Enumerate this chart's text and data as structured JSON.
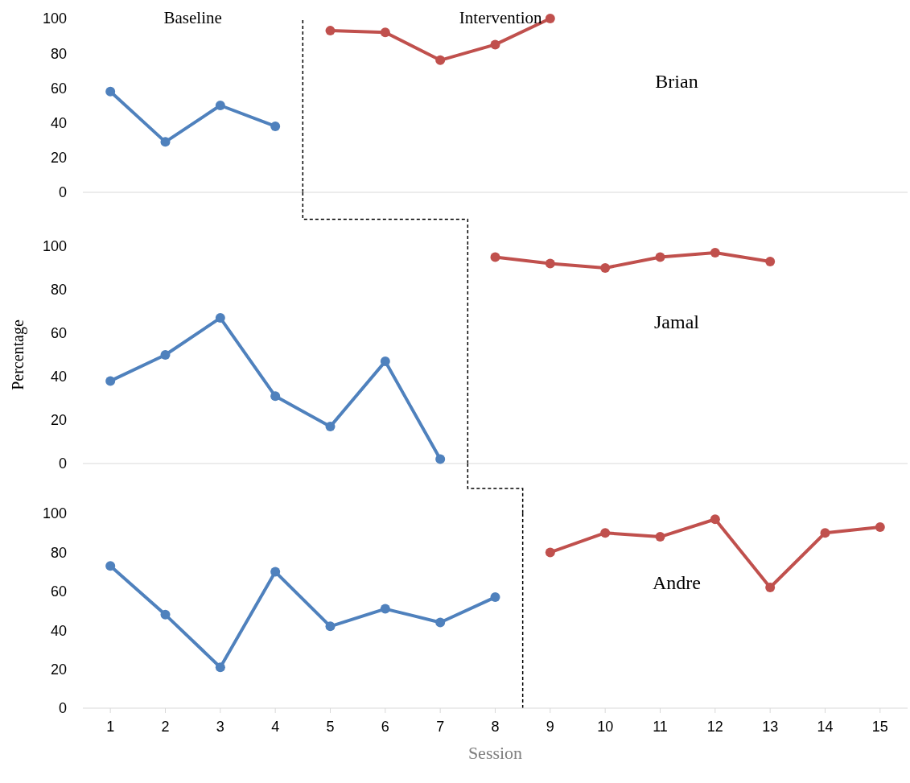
{
  "chart_data": [
    {
      "type": "line",
      "title": "Brian",
      "annotations": [
        "Baseline",
        "Intervention"
      ],
      "xlim": [
        0.5,
        15.5
      ],
      "xticks": [
        1,
        2,
        3,
        4,
        5,
        6,
        7,
        8,
        9,
        10,
        11,
        12,
        13,
        14,
        15
      ],
      "ylim": [
        0,
        100
      ],
      "yticks": [
        0,
        20,
        40,
        60,
        80,
        100
      ],
      "tick_labels": "y",
      "marker": "circle",
      "line_style": "solid",
      "ref_lines": [
        {
          "axis": "x",
          "value": 4.5,
          "color": "#000000",
          "line_style": "dashed"
        }
      ],
      "series": [
        {
          "color": "#4f81bd",
          "x": [
            1,
            2,
            3,
            4
          ],
          "values": [
            58,
            29,
            50,
            38
          ]
        },
        {
          "color": "#c0504d",
          "x": [
            5,
            6,
            7,
            8,
            9
          ],
          "values": [
            93,
            92,
            76,
            85,
            100
          ]
        }
      ]
    },
    {
      "type": "line",
      "title": "Jamal",
      "ylabel": "Percentage",
      "xlim": [
        0.5,
        15.5
      ],
      "xticks": [
        1,
        2,
        3,
        4,
        5,
        6,
        7,
        8,
        9,
        10,
        11,
        12,
        13,
        14,
        15
      ],
      "ylim": [
        0,
        100
      ],
      "yticks": [
        0,
        20,
        40,
        60,
        80,
        100
      ],
      "tick_labels": "y",
      "marker": "circle",
      "line_style": "solid",
      "ref_lines": [
        {
          "axis": "x",
          "value": 7.5,
          "color": "#000000",
          "line_style": "dashed"
        }
      ],
      "series": [
        {
          "color": "#4f81bd",
          "x": [
            1,
            2,
            3,
            4,
            5,
            6,
            7
          ],
          "values": [
            38,
            50,
            67,
            31,
            17,
            47,
            2
          ]
        },
        {
          "color": "#c0504d",
          "x": [
            8,
            9,
            10,
            11,
            12,
            13
          ],
          "values": [
            95,
            92,
            90,
            95,
            97,
            93
          ]
        }
      ]
    },
    {
      "type": "line",
      "title": "Andre",
      "xlabel": "Session",
      "xlim": [
        0.5,
        15.5
      ],
      "xticks": [
        1,
        2,
        3,
        4,
        5,
        6,
        7,
        8,
        9,
        10,
        11,
        12,
        13,
        14,
        15
      ],
      "ylim": [
        0,
        100
      ],
      "yticks": [
        0,
        20,
        40,
        60,
        80,
        100
      ],
      "marker": "circle",
      "line_style": "solid",
      "ref_lines": [
        {
          "axis": "x",
          "value": 8.5,
          "color": "#000000",
          "line_style": "dashed"
        }
      ],
      "series": [
        {
          "color": "#4f81bd",
          "x": [
            1,
            2,
            3,
            4,
            5,
            6,
            7,
            8
          ],
          "values": [
            73,
            48,
            21,
            70,
            42,
            51,
            44,
            57
          ]
        },
        {
          "color": "#c0504d",
          "x": [
            9,
            10,
            11,
            12,
            13,
            14,
            15
          ],
          "values": [
            80,
            90,
            88,
            97,
            62,
            90,
            93
          ]
        }
      ]
    }
  ]
}
